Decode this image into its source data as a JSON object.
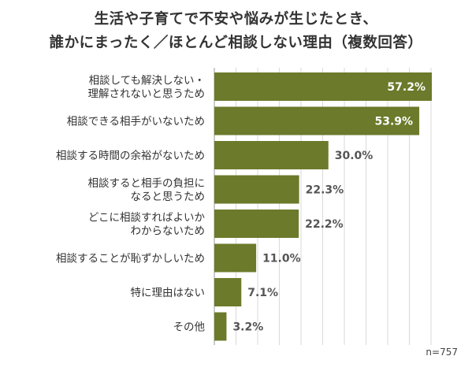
{
  "title_lines": [
    "生活や子育てで不安や悩みが生じたとき、",
    "誰かにまったく／ほとんど相談しない理由（複数回答）"
  ],
  "note": "n=757",
  "colors": {
    "bar": "#6b7a2b",
    "label_inside": "#ffffff",
    "label_outside": "#555555",
    "grid": "#d9d9d9"
  },
  "chart_data": {
    "type": "bar",
    "orientation": "horizontal",
    "title": "生活や子育てで不安や悩みが生じたとき、誰かにまったく／ほとんど相談しない理由（複数回答）",
    "categories": [
      [
        "相談しても解決しない・",
        "理解されないと思うため"
      ],
      [
        "相談できる相手がいないため"
      ],
      [
        "相談する時間の余裕がないため"
      ],
      [
        "相談すると相手の負担に",
        "なると思うため"
      ],
      [
        "どこに相談すればよいか",
        "わからないため"
      ],
      [
        "相談することが恥ずかしいため"
      ],
      [
        "特に理由はない"
      ],
      [
        "その他"
      ]
    ],
    "values": [
      57.2,
      53.9,
      30.0,
      22.3,
      22.2,
      11.0,
      7.1,
      3.2
    ],
    "value_labels": [
      "57.2%",
      "53.9%",
      "30.0%",
      "22.3%",
      "22.2%",
      "11.0%",
      "7.1%",
      "3.2%"
    ],
    "xlim": [
      0,
      60
    ],
    "grid": true
  }
}
